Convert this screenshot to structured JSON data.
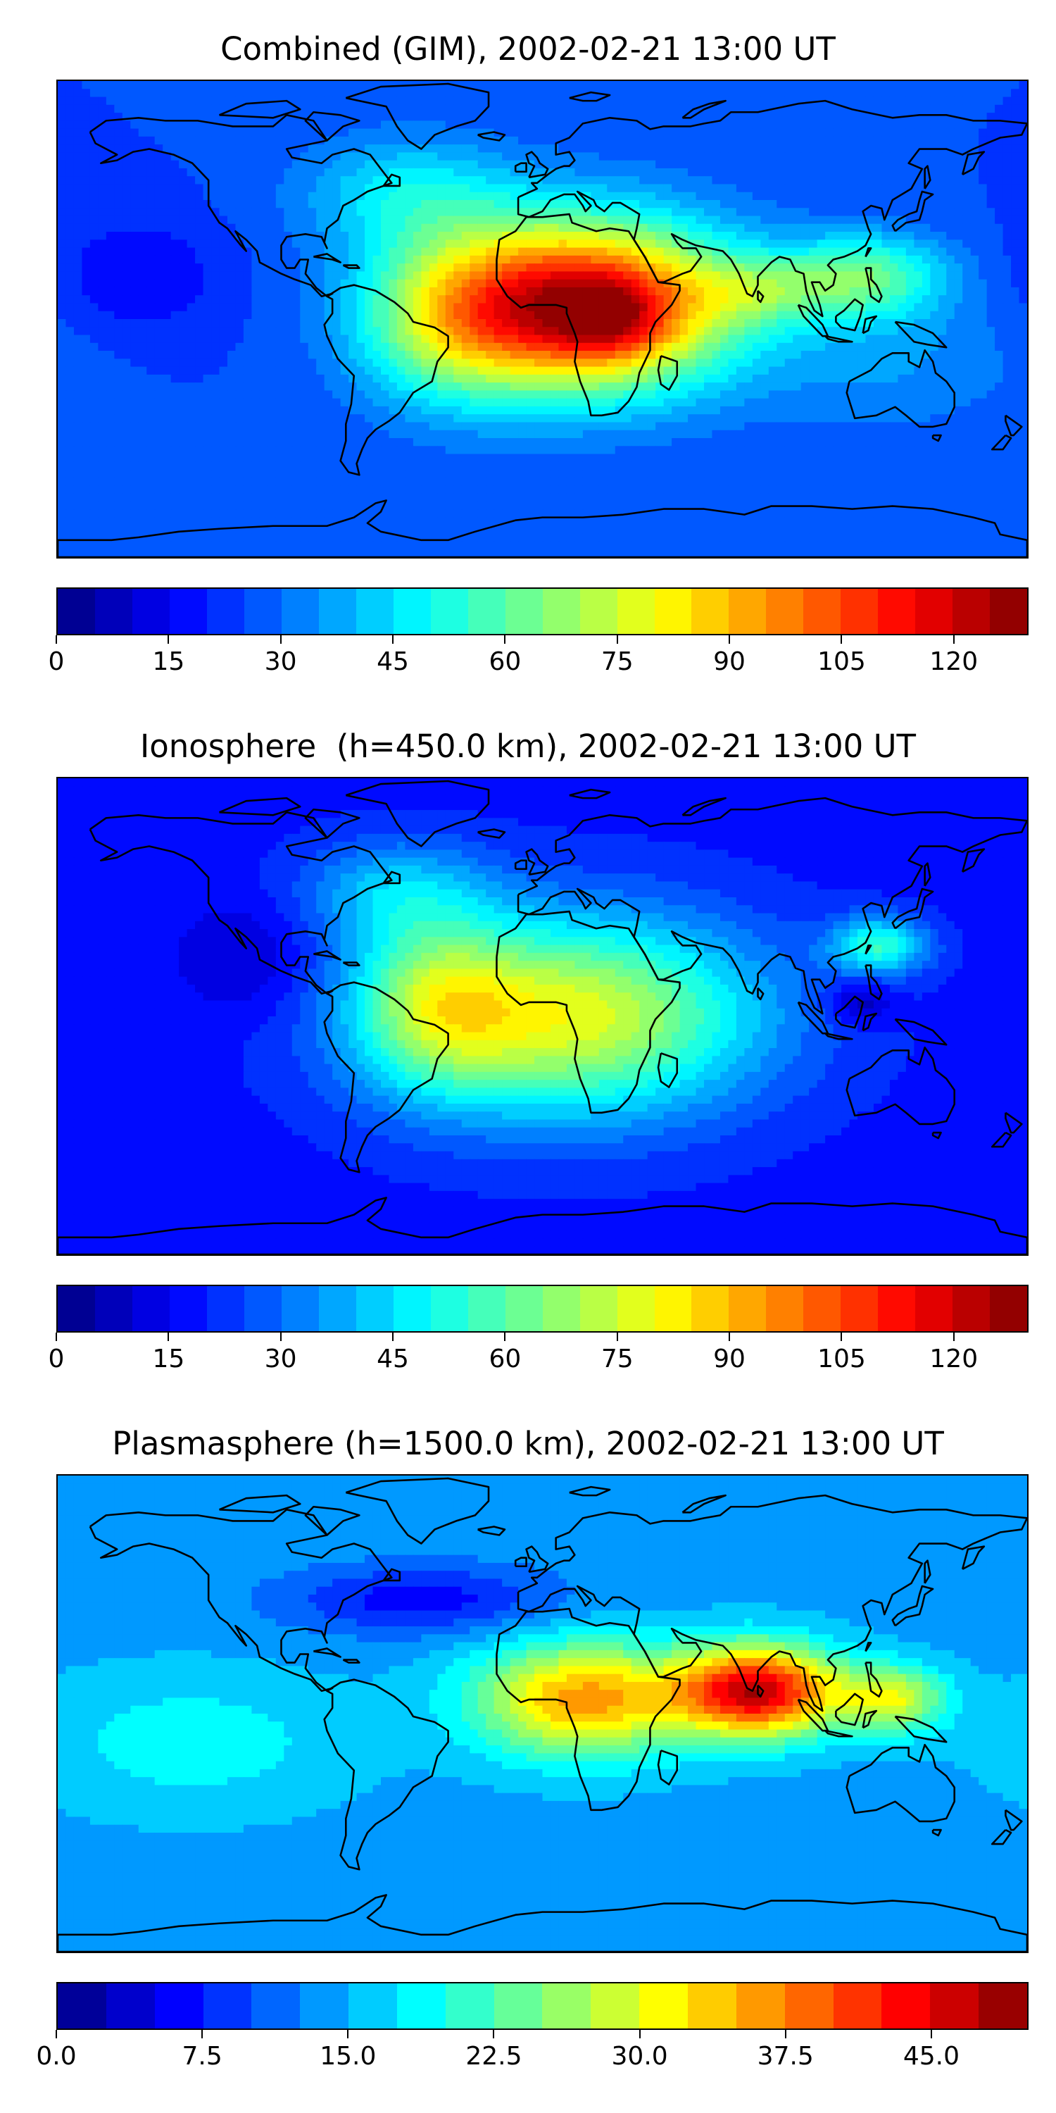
{
  "panels": [
    {
      "title": "Combined (GIM), 2002-02-21 13:00 UT",
      "colorbar": {
        "ticks": [
          "0",
          "15",
          "30",
          "45",
          "60",
          "75",
          "90",
          "105",
          "120"
        ],
        "tick_values": [
          0,
          15,
          30,
          45,
          60,
          75,
          90,
          105,
          120
        ],
        "vmin": 0,
        "vmax": 130,
        "levels": 26
      },
      "field": {
        "background": 25,
        "blobs": [
          {
            "lon": 15,
            "lat": 5,
            "value": 95,
            "rx": 55,
            "ry": 30
          },
          {
            "lon": 25,
            "lat": 0,
            "value": 20,
            "rx": 22,
            "ry": 14
          },
          {
            "lon": 80,
            "lat": 10,
            "value": 20,
            "rx": 25,
            "ry": 12
          },
          {
            "lon": -35,
            "lat": 0,
            "value": 30,
            "rx": 35,
            "ry": 30
          },
          {
            "lon": 120,
            "lat": 15,
            "value": 35,
            "rx": 30,
            "ry": 15
          },
          {
            "lon": 130,
            "lat": -15,
            "value": 10,
            "rx": 50,
            "ry": 25
          },
          {
            "lon": -50,
            "lat": 45,
            "value": 20,
            "rx": 40,
            "ry": 20
          },
          {
            "lon": -150,
            "lat": 15,
            "value": -10,
            "rx": 30,
            "ry": 20
          }
        ]
      }
    },
    {
      "title": "Ionosphere  (h=450.0 km), 2002-02-21 13:00 UT",
      "colorbar": {
        "ticks": [
          "0",
          "15",
          "30",
          "45",
          "60",
          "75",
          "90",
          "105",
          "120"
        ],
        "tick_values": [
          0,
          15,
          30,
          45,
          60,
          75,
          90,
          105,
          120
        ],
        "vmin": 0,
        "vmax": 130,
        "levels": 26
      },
      "field": {
        "background": 18,
        "blobs": [
          {
            "lon": 10,
            "lat": 0,
            "value": 60,
            "rx": 70,
            "ry": 35
          },
          {
            "lon": -40,
            "lat": 5,
            "value": 30,
            "rx": 30,
            "ry": 30
          },
          {
            "lon": -55,
            "lat": 45,
            "value": 20,
            "rx": 35,
            "ry": 18
          },
          {
            "lon": 125,
            "lat": 25,
            "value": 35,
            "rx": 18,
            "ry": 10
          },
          {
            "lon": 118,
            "lat": 5,
            "value": -15,
            "rx": 12,
            "ry": 8
          },
          {
            "lon": -110,
            "lat": 20,
            "value": -10,
            "rx": 25,
            "ry": 20
          }
        ]
      }
    },
    {
      "title": "Plasmasphere (h=1500.0 km), 2002-02-21 13:00 UT",
      "colorbar": {
        "ticks": [
          "0.0",
          "7.5",
          "15.0",
          "22.5",
          "30.0",
          "37.5",
          "45.0"
        ],
        "tick_values": [
          0,
          7.5,
          15,
          22.5,
          30,
          37.5,
          45
        ],
        "vmin": 0,
        "vmax": 50,
        "levels": 20
      },
      "field": {
        "background": 14,
        "blobs": [
          {
            "lon": 80,
            "lat": 8,
            "value": 32,
            "rx": 30,
            "ry": 16
          },
          {
            "lon": 15,
            "lat": 5,
            "value": 22,
            "rx": 40,
            "ry": 20
          },
          {
            "lon": 130,
            "lat": 5,
            "value": 15,
            "rx": 20,
            "ry": 12
          },
          {
            "lon": -45,
            "lat": 40,
            "value": -8,
            "rx": 50,
            "ry": 12
          },
          {
            "lon": -130,
            "lat": -10,
            "value": 5,
            "rx": 60,
            "ry": 25
          }
        ]
      }
    }
  ]
}
